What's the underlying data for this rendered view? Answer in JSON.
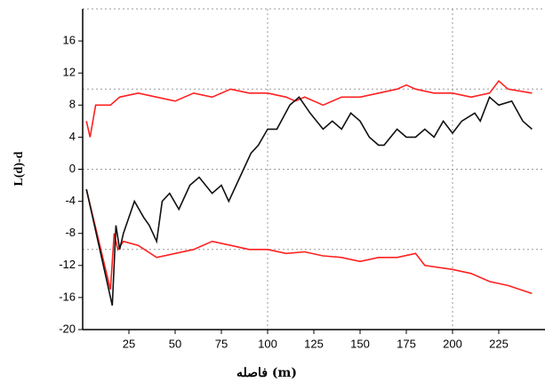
{
  "chart_data": {
    "type": "line",
    "x_label": "فاصله (m)",
    "y_label": "L(d)-d",
    "xlim": [
      0,
      250
    ],
    "ylim": [
      -20,
      20
    ],
    "xticks": [
      25,
      50,
      75,
      100,
      125,
      150,
      175,
      200,
      225
    ],
    "yticks": [
      -20,
      -16,
      -12,
      -8,
      -4,
      0,
      4,
      8,
      12,
      16
    ],
    "xgrid": [
      100,
      200
    ],
    "ygrid": [
      -10,
      0,
      10,
      20
    ],
    "series": [
      {
        "color": "#ff2020",
        "x": [
          2,
          4,
          7,
          15,
          20,
          30,
          40,
          50,
          60,
          70,
          80,
          90,
          100,
          110,
          115,
          120,
          130,
          140,
          150,
          160,
          170,
          175,
          180,
          190,
          200,
          210,
          220,
          225,
          230,
          243
        ],
        "values": [
          6,
          4,
          8,
          8,
          9,
          9.5,
          9,
          8.5,
          9.5,
          9,
          10,
          9.5,
          9.5,
          9,
          8.5,
          9,
          8,
          9,
          9,
          9.5,
          10,
          10.5,
          10,
          9.5,
          9.5,
          9,
          9.5,
          11,
          10,
          9.5
        ]
      },
      {
        "color": "#ff2020",
        "x": [
          2,
          15,
          17,
          19,
          22,
          30,
          40,
          50,
          60,
          70,
          80,
          90,
          100,
          110,
          120,
          130,
          140,
          150,
          160,
          170,
          180,
          185,
          200,
          210,
          220,
          230,
          243
        ],
        "values": [
          -2.5,
          -15,
          -8,
          -10,
          -9,
          -9.5,
          -11,
          -10.5,
          -10,
          -9,
          -9.5,
          -10,
          -10,
          -10.5,
          -10.3,
          -10.8,
          -11,
          -11.5,
          -11,
          -11,
          -10.5,
          -12,
          -12.5,
          -13,
          -14,
          -14.5,
          -15.5
        ]
      },
      {
        "color": "#111111",
        "x": [
          2,
          16,
          18,
          20,
          22,
          28,
          33,
          36,
          40,
          43,
          47,
          52,
          58,
          63,
          70,
          75,
          79,
          85,
          91,
          95,
          100,
          105,
          112,
          117,
          123,
          130,
          135,
          140,
          145,
          150,
          155,
          160,
          163,
          170,
          175,
          180,
          185,
          190,
          195,
          200,
          205,
          212,
          215,
          220,
          225,
          232,
          238,
          243
        ],
        "values": [
          -2.5,
          -17,
          -7,
          -10,
          -8,
          -4,
          -6,
          -7,
          -9,
          -4,
          -3,
          -5,
          -2,
          -1,
          -3,
          -2,
          -4,
          -1,
          2,
          3,
          5,
          5,
          8,
          9,
          7,
          5,
          6,
          5,
          7,
          6,
          4,
          3,
          3,
          5,
          4,
          4,
          5,
          4,
          6,
          4.5,
          6,
          7,
          6,
          9,
          8,
          8.5,
          6,
          5
        ]
      }
    ]
  }
}
